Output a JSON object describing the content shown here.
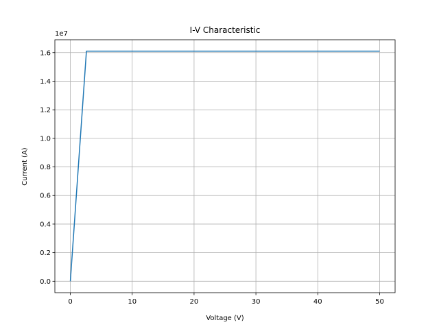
{
  "chart_data": {
    "type": "line",
    "title": "I-V Characteristic",
    "xlabel": "Voltage (V)",
    "ylabel": "Current (A)",
    "y_offset_label": "1e7",
    "y_scale_factor": 10000000,
    "xlim": [
      -2.5,
      52.5
    ],
    "ylim": [
      -0.08,
      1.69
    ],
    "x_ticks": [
      0,
      10,
      20,
      30,
      40,
      50
    ],
    "x_tick_labels": [
      "0",
      "10",
      "20",
      "30",
      "40",
      "50"
    ],
    "y_ticks": [
      0.0,
      0.2,
      0.4,
      0.6,
      0.8,
      1.0,
      1.2,
      1.4,
      1.6
    ],
    "y_tick_labels": [
      "0.0",
      "0.2",
      "0.4",
      "0.6",
      "0.8",
      "1.0",
      "1.2",
      "1.4",
      "1.6"
    ],
    "grid": true,
    "series": [
      {
        "color": "#1f77b4",
        "x": [
          0,
          2.6,
          50
        ],
        "y": [
          0.0,
          1.61,
          1.61
        ]
      }
    ]
  }
}
